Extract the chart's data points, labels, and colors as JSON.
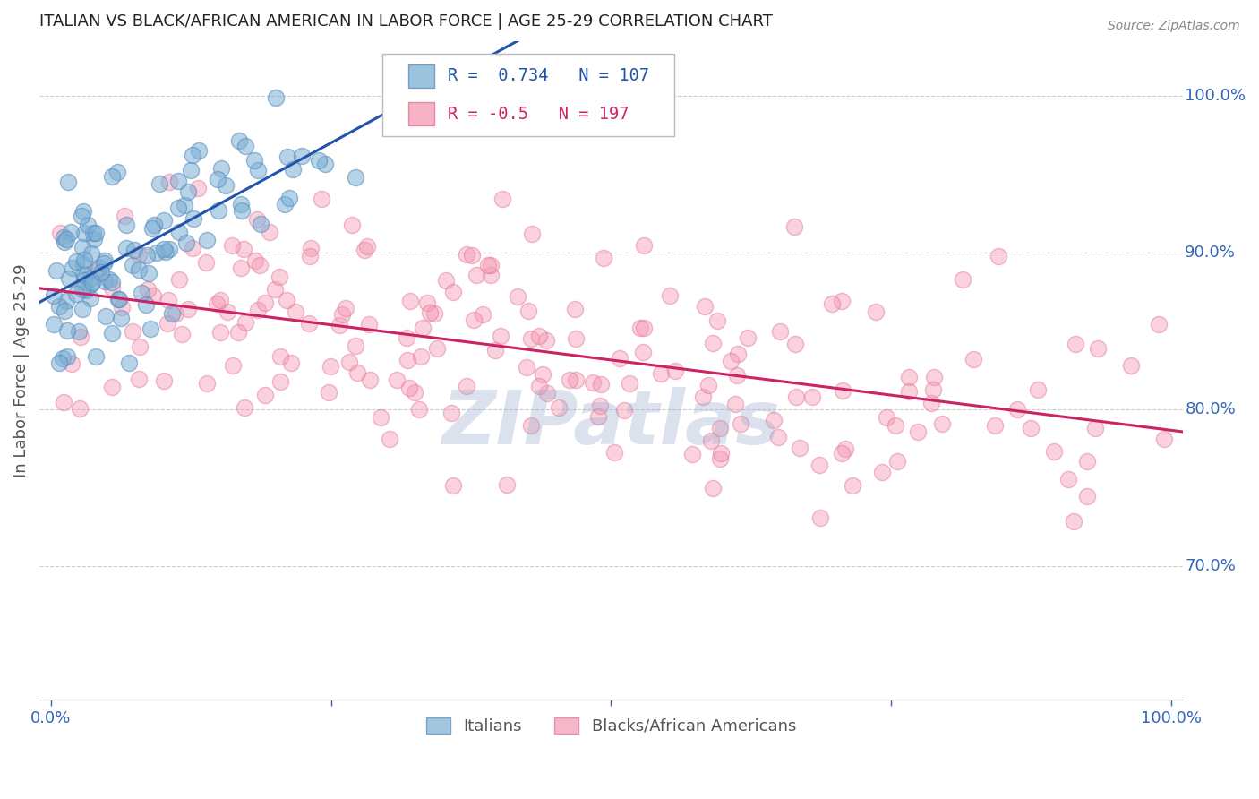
{
  "title": "ITALIAN VS BLACK/AFRICAN AMERICAN IN LABOR FORCE | AGE 25-29 CORRELATION CHART",
  "source": "Source: ZipAtlas.com",
  "ylabel": "In Labor Force | Age 25-29",
  "ytick_labels": [
    "70.0%",
    "80.0%",
    "90.0%",
    "100.0%"
  ],
  "ytick_values": [
    0.7,
    0.8,
    0.9,
    1.0
  ],
  "ylim": [
    0.615,
    1.035
  ],
  "xlim": [
    -0.01,
    1.01
  ],
  "blue_R": 0.734,
  "blue_N": 107,
  "pink_R": -0.5,
  "pink_N": 197,
  "blue_color": "#7BAFD4",
  "pink_color": "#F599B4",
  "blue_edge_color": "#5588BB",
  "pink_edge_color": "#E07090",
  "blue_line_color": "#2255AA",
  "pink_line_color": "#CC2266",
  "legend_label_blue": "Italians",
  "legend_label_pink": "Blacks/African Americans",
  "background_color": "#FFFFFF",
  "grid_color": "#CCCCCC",
  "title_color": "#222222",
  "axis_label_color": "#555555",
  "ytick_color": "#3366BB",
  "xtick_color": "#3366BB",
  "source_color": "#888888",
  "watermark_color": "#99AACC",
  "watermark_text": "ZIPatlas"
}
